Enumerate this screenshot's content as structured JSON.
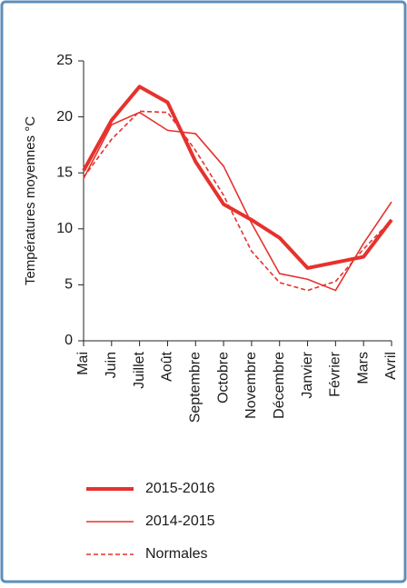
{
  "chart_data": {
    "type": "line",
    "y_label": "Températures moyennes °C",
    "categories": [
      "Mai",
      "Juin",
      "Juillet",
      "Août",
      "Septembre",
      "Octobre",
      "Novembre",
      "Décembre",
      "Janvier",
      "Février",
      "Mars",
      "Avril"
    ],
    "ylim": [
      0,
      25
    ],
    "yticks": [
      0,
      5,
      10,
      15,
      20,
      25
    ],
    "series": [
      {
        "name": "2015-2016",
        "color": "#e5322d",
        "bold": true,
        "dashed": false,
        "values": [
          15.2,
          19.7,
          22.7,
          21.3,
          16,
          12.2,
          10.8,
          9.2,
          6.5,
          7,
          7.5,
          10.8
        ]
      },
      {
        "name": "2014-2015",
        "color": "#e5322d",
        "bold": false,
        "dashed": false,
        "values": [
          14.5,
          19.3,
          20.4,
          18.8,
          18.5,
          15.6,
          10.5,
          6,
          5.5,
          4.5,
          8.7,
          12.4
        ]
      },
      {
        "name": "Normales",
        "color": "#e5322d",
        "bold": false,
        "dashed": true,
        "values": [
          14.6,
          18,
          20.5,
          20.4,
          17,
          13,
          8,
          5.2,
          4.5,
          5.3,
          8.2,
          10.8
        ]
      }
    ]
  }
}
